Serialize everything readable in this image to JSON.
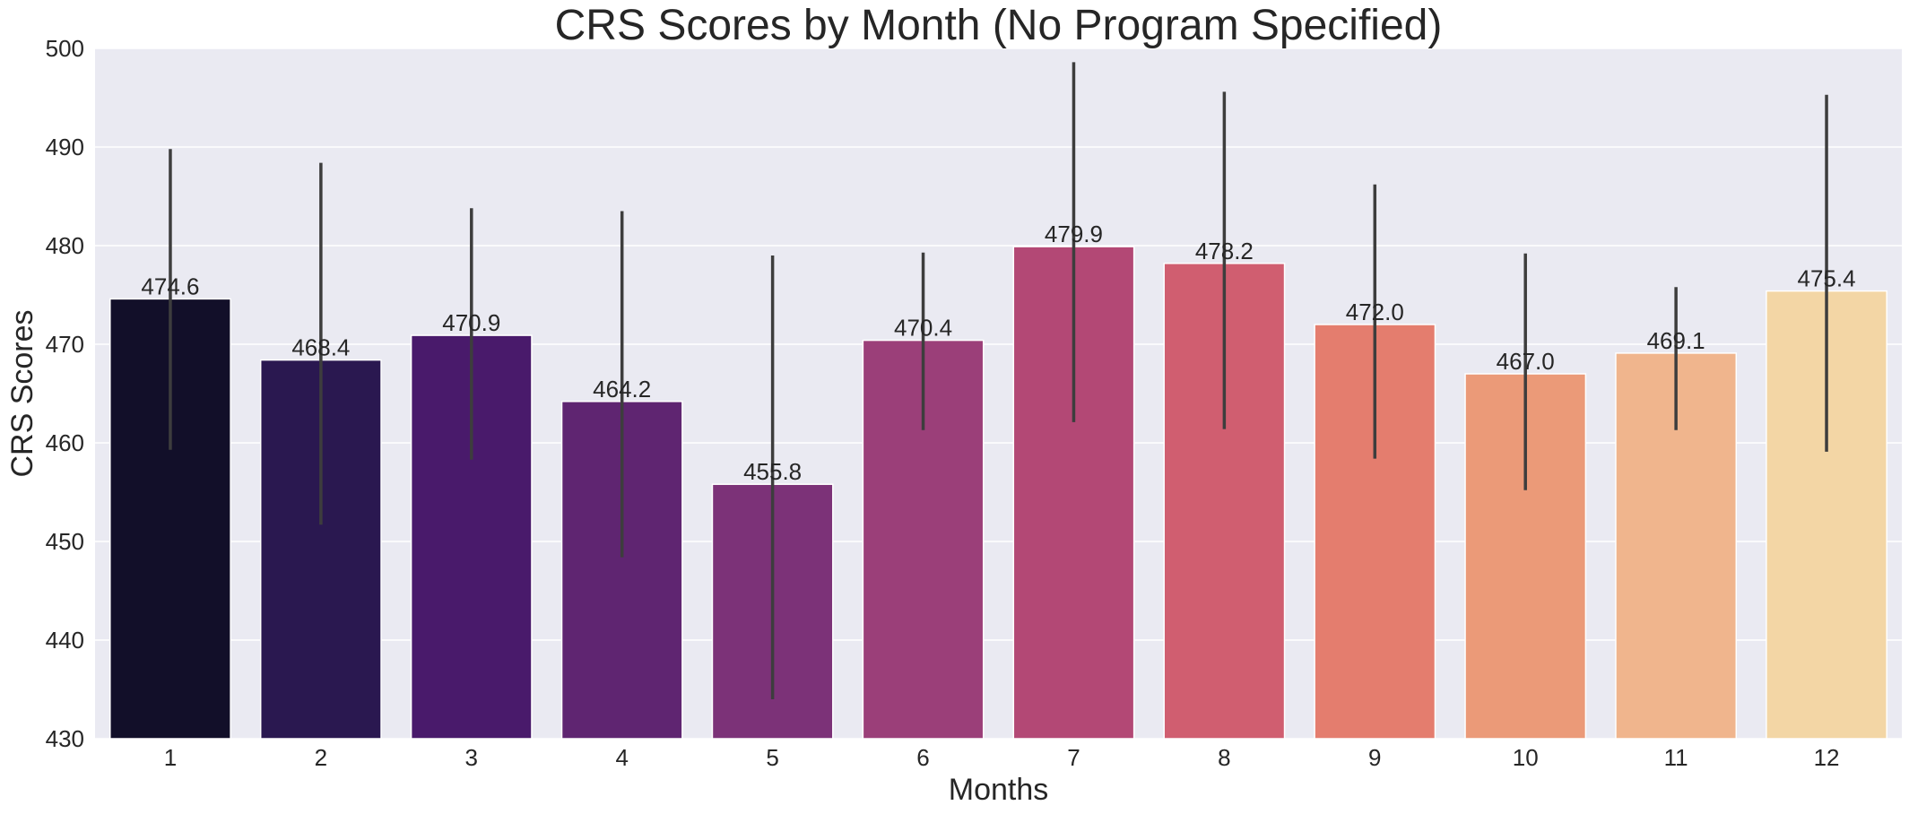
{
  "chart_data": {
    "type": "bar",
    "title": "CRS Scores by Month (No Program Specified)",
    "xlabel": "Months",
    "ylabel": "CRS Scores",
    "categories": [
      "1",
      "2",
      "3",
      "4",
      "5",
      "6",
      "7",
      "8",
      "9",
      "10",
      "11",
      "12"
    ],
    "values": [
      474.6,
      468.4,
      470.9,
      464.2,
      455.8,
      470.4,
      479.9,
      478.2,
      472.0,
      467.0,
      469.1,
      475.4
    ],
    "value_labels": [
      "474.6",
      "468.4",
      "470.9",
      "464.2",
      "455.8",
      "470.4",
      "479.9",
      "478.2",
      "472.0",
      "467.0",
      "469.1",
      "475.4"
    ],
    "error_low": [
      459.3,
      451.7,
      458.3,
      448.4,
      434.0,
      461.3,
      462.1,
      461.4,
      458.4,
      455.2,
      461.3,
      459.1
    ],
    "error_high": [
      489.8,
      488.4,
      483.8,
      483.5,
      479.0,
      479.3,
      498.6,
      495.6,
      486.2,
      479.2,
      475.8,
      495.3
    ],
    "ylim": [
      430,
      500
    ],
    "yticks": [
      430,
      440,
      450,
      460,
      470,
      480,
      490,
      500
    ],
    "grid": true,
    "colors": [
      "#120f29",
      "#2a1850",
      "#491a6b",
      "#5f2571",
      "#7c3278",
      "#9b3f79",
      "#b34875",
      "#d05e70",
      "#e47d6e",
      "#eb9a78",
      "#f0b58d",
      "#f3d6a5"
    ],
    "plot_background": "#eaeaf2",
    "errorbar_color": "#3d3d3d"
  }
}
